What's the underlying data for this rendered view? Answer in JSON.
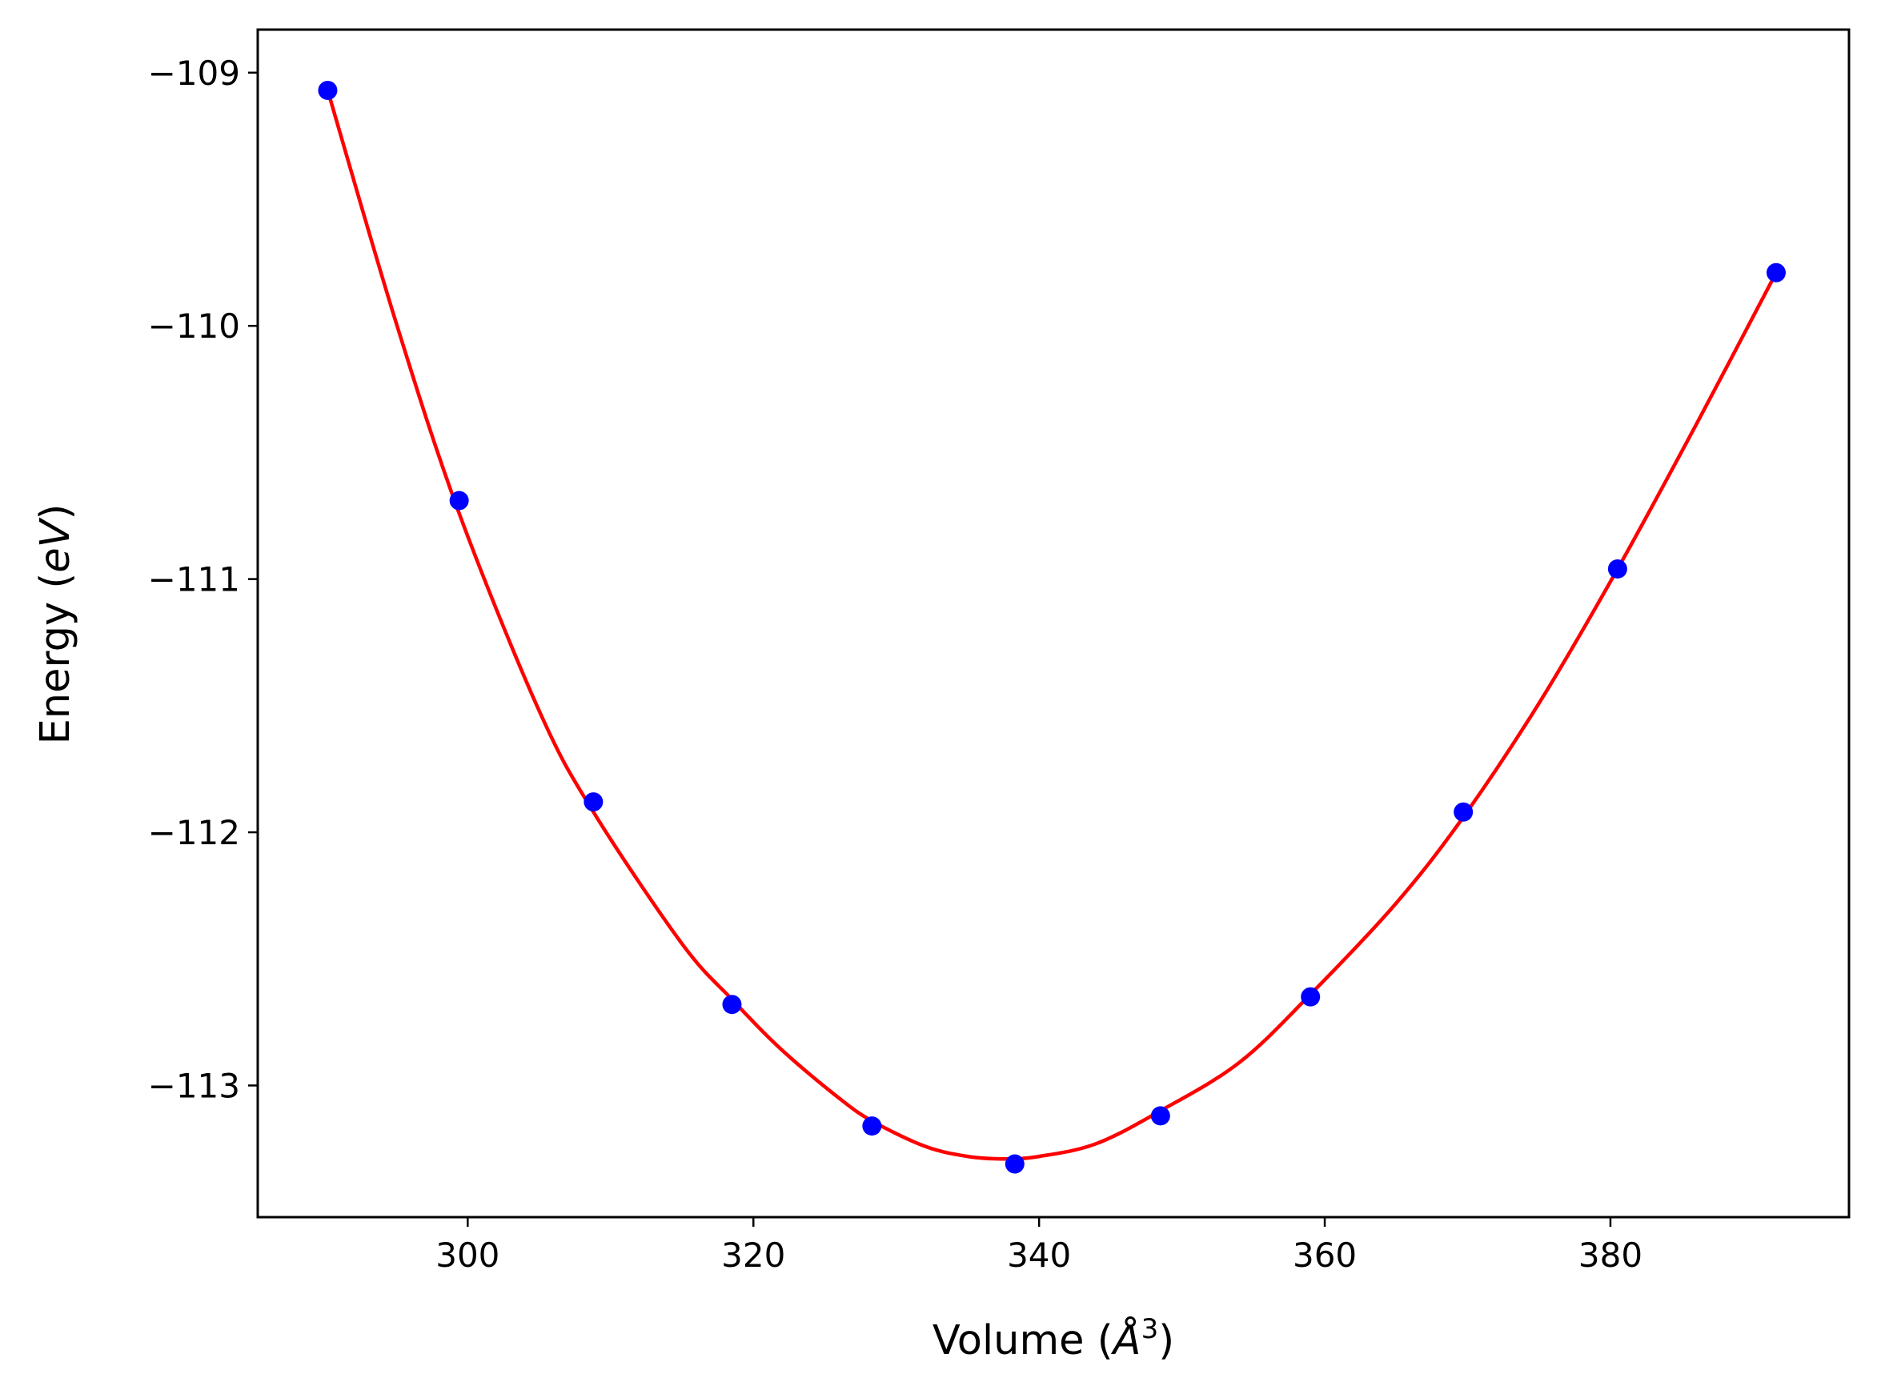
{
  "chart_data": {
    "type": "line",
    "title": "",
    "xlabel_text": "Volume (",
    "xlabel_symbol": "Å",
    "xlabel_power": "3",
    "xlabel_close": ")",
    "ylabel_text": "Energy (",
    "ylabel_symbol": "eV",
    "ylabel_close": ")",
    "xlim": [
      285.3,
      396.7
    ],
    "ylim": [
      -113.52,
      -108.83
    ],
    "xticks": [
      300,
      320,
      340,
      360,
      380
    ],
    "xtick_labels": [
      "300",
      "320",
      "340",
      "360",
      "380"
    ],
    "yticks": [
      -109,
      -110,
      -111,
      -112,
      -113
    ],
    "ytick_labels": [
      "−109",
      "−110",
      "−111",
      "−112",
      "−113"
    ],
    "grid": false,
    "series": [
      {
        "kind": "points",
        "color": "#0000ff",
        "x": [
          290.2,
          299.4,
          308.8,
          318.5,
          328.3,
          338.3,
          348.5,
          359.0,
          369.7,
          380.5,
          391.6
        ],
        "y": [
          -109.07,
          -110.69,
          -111.88,
          -112.68,
          -113.16,
          -113.31,
          -113.12,
          -112.65,
          -111.92,
          -110.96,
          -109.79
        ]
      },
      {
        "kind": "fit-curve",
        "color": "#ff0000",
        "x": [
          290.2,
          295,
          299.4,
          305,
          308.8,
          315,
          318.5,
          322,
          326,
          328.3,
          332,
          335,
          337.6,
          340,
          344,
          348.5,
          354,
          359.0,
          365,
          369.7,
          375,
          380.5,
          386,
          391.6
        ],
        "y": [
          -109.07,
          -109.99,
          -110.74,
          -111.52,
          -111.92,
          -112.44,
          -112.66,
          -112.86,
          -113.05,
          -113.14,
          -113.24,
          -113.28,
          -113.29,
          -113.28,
          -113.23,
          -113.1,
          -112.91,
          -112.64,
          -112.28,
          -111.94,
          -111.49,
          -110.96,
          -110.39,
          -109.79
        ]
      }
    ]
  }
}
